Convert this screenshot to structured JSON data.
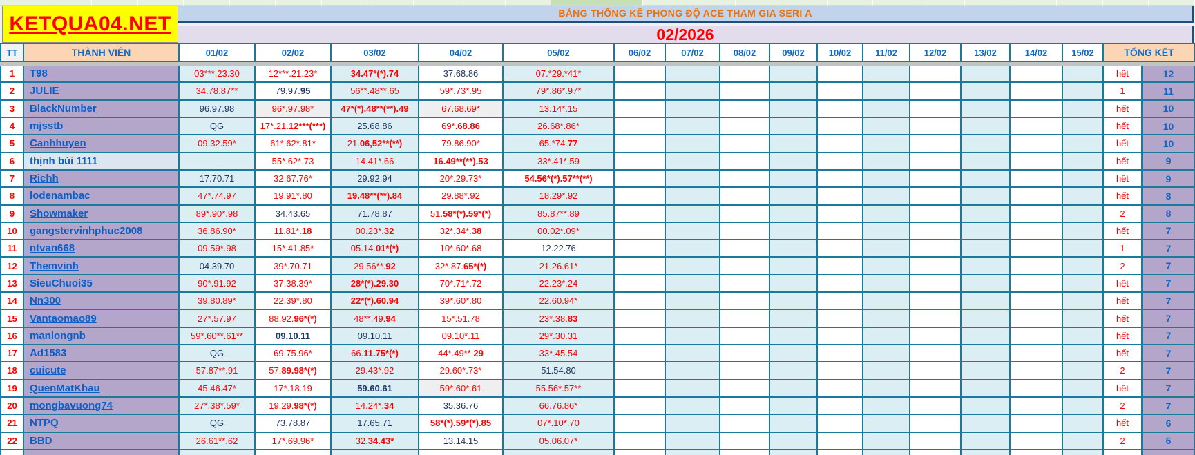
{
  "logo": {
    "text": "KETQUA04.NET"
  },
  "header": {
    "title": "BẢNG THỐNG KÊ PHONG ĐỘ ACE THAM GIA SERI A",
    "month": "02/2026"
  },
  "columns": {
    "tt": "TT",
    "member": "THÀNH VIÊN",
    "dates": [
      "01/02",
      "02/02",
      "03/02",
      "04/02",
      "05/02",
      "06/02",
      "07/02",
      "08/02",
      "09/02",
      "10/02",
      "11/02",
      "12/02",
      "13/02",
      "14/02",
      "15/02"
    ],
    "summary": "TỔNG KẾT"
  },
  "colors": {
    "accent_teal_border": "#1b7a9c",
    "light_blue_cell": "#daeef3",
    "purple_cell": "#b4a5cb",
    "peach_header": "#fcd5b4",
    "title_orange": "#e8720c",
    "red_text": "#ff0000",
    "dark_text": "#1f3864",
    "link_blue": "#0b5fc5",
    "logo_yellow": "#ffff00"
  },
  "rows": [
    {
      "tt": "1",
      "name": "T98",
      "underline": false,
      "cells": [
        {
          "t": "03***.23.30",
          "c": "red"
        },
        {
          "t": "12***.21.23*",
          "c": "red"
        },
        {
          "t": "[b]34.47*(*).74[/b]",
          "c": "red"
        },
        {
          "t": "37.68.86",
          "c": "dark"
        },
        {
          "t": "07.*29.*41*",
          "c": "red"
        }
      ],
      "het": "hết",
      "total": "12"
    },
    {
      "tt": "2",
      "name": "JULIE",
      "underline": true,
      "cells": [
        {
          "t": "34.78.87**",
          "c": "red"
        },
        {
          "t": "79.97.[b]95[/b]",
          "c": "dark"
        },
        {
          "t": "56**.48**.65",
          "c": "red"
        },
        {
          "t": "59*.73*.95",
          "c": "red"
        },
        {
          "t": "79*.86*.97*",
          "c": "red"
        }
      ],
      "het": "1",
      "total": "11"
    },
    {
      "tt": "3",
      "name": "BlackNumber",
      "underline": true,
      "cells": [
        {
          "t": "96.97.98",
          "c": "dark"
        },
        {
          "t": "96*.97.98*",
          "c": "red",
          "bg": "grey"
        },
        {
          "t": "[b]47*(*).48**(**).49[/b]",
          "c": "red"
        },
        {
          "t": "67.68.69*",
          "c": "red",
          "bg": "grey"
        },
        {
          "t": "13.14*.15",
          "c": "red"
        }
      ],
      "het": "hết",
      "total": "10"
    },
    {
      "tt": "4",
      "name": "mjsstb",
      "underline": true,
      "cells": [
        {
          "t": "QG",
          "c": "dark"
        },
        {
          "t": "17*.21.[b]12***(***)[/b]",
          "c": "red"
        },
        {
          "t": "25.68.86",
          "c": "dark"
        },
        {
          "t": "69*.[b]68.86[/b]",
          "c": "red"
        },
        {
          "t": "26.68*.86*",
          "c": "red"
        }
      ],
      "het": "hết",
      "total": "10"
    },
    {
      "tt": "5",
      "name": "Canhhuyen",
      "underline": true,
      "cells": [
        {
          "t": "09.32.59*",
          "c": "red"
        },
        {
          "t": "61*.62*.81*",
          "c": "red"
        },
        {
          "t": "21.[b]06,52**(**)[/b]",
          "c": "red"
        },
        {
          "t": "79.86.90*",
          "c": "red"
        },
        {
          "t": "65.*74.[b]77[/b]",
          "c": "red"
        }
      ],
      "het": "hết",
      "total": "10"
    },
    {
      "tt": "6",
      "name": "thịnh bùi 1111",
      "underline": false,
      "nameBg": "blue",
      "cells": [
        {
          "t": "-",
          "c": "dark"
        },
        {
          "t": "55*.62*.73",
          "c": "red"
        },
        {
          "t": "14.41*.66",
          "c": "red"
        },
        {
          "t": "[b]16.49**(**).53[/b]",
          "c": "red"
        },
        {
          "t": "33*.41*.59",
          "c": "red"
        }
      ],
      "het": "hết",
      "total": "9"
    },
    {
      "tt": "7",
      "name": "Richh",
      "underline": true,
      "cells": [
        {
          "t": "17.70.71",
          "c": "dark"
        },
        {
          "t": "32.67.76*",
          "c": "red"
        },
        {
          "t": "29.92.94",
          "c": "dark"
        },
        {
          "t": "20*.29.73*",
          "c": "red"
        },
        {
          "t": "[b]54.56*(*).57**(**)[/b]",
          "c": "red",
          "bg": "white"
        }
      ],
      "het": "hết",
      "total": "9"
    },
    {
      "tt": "8",
      "name": "lodenambac",
      "underline": false,
      "cells": [
        {
          "t": "47*.74.97",
          "c": "red"
        },
        {
          "t": "19.91*.80",
          "c": "red"
        },
        {
          "t": "[b]19.48**(**).84[/b]",
          "c": "red"
        },
        {
          "t": "29.88*.92",
          "c": "red"
        },
        {
          "t": "18.29*.92",
          "c": "red"
        }
      ],
      "het": "hết",
      "total": "8"
    },
    {
      "tt": "9",
      "name": "Showmaker",
      "underline": true,
      "cells": [
        {
          "t": "89*.90*.98",
          "c": "red"
        },
        {
          "t": "34.43.65",
          "c": "dark"
        },
        {
          "t": "71.78.87",
          "c": "dark"
        },
        {
          "t": "51.[b]58*(*).59*(*)[/b]",
          "c": "red"
        },
        {
          "t": "85.87**.89",
          "c": "red"
        }
      ],
      "het": "2",
      "total": "8"
    },
    {
      "tt": "10",
      "name": "gangstervinhphuc2008",
      "underline": true,
      "cells": [
        {
          "t": "36.86.90*",
          "c": "red"
        },
        {
          "t": "11.81*.[b]18[/b]",
          "c": "red"
        },
        {
          "t": "00.23*.[b]32[/b]",
          "c": "red"
        },
        {
          "t": "32*.34*.[b]38[/b]",
          "c": "red"
        },
        {
          "t": "00.02*.09*",
          "c": "red"
        }
      ],
      "het": "hết",
      "total": "7"
    },
    {
      "tt": "11",
      "name": "ntvan668",
      "underline": true,
      "cells": [
        {
          "t": "09.59*.98",
          "c": "red"
        },
        {
          "t": "15*.41.85*",
          "c": "red"
        },
        {
          "t": "05.14.[b]01*(*)[/b]",
          "c": "red"
        },
        {
          "t": "10*.60*.68",
          "c": "red"
        },
        {
          "t": "12.22.76",
          "c": "dark",
          "bg": "white"
        }
      ],
      "het": "1",
      "total": "7"
    },
    {
      "tt": "12",
      "name": "Themvinh",
      "underline": true,
      "cells": [
        {
          "t": "04.39.70",
          "c": "dark"
        },
        {
          "t": "39*.70.71",
          "c": "red"
        },
        {
          "t": "29.56**.[b]92[/b]",
          "c": "red"
        },
        {
          "t": "32*.87.[b]65*(*)[/b]",
          "c": "red"
        },
        {
          "t": "21.26.61*",
          "c": "red"
        }
      ],
      "het": "2",
      "total": "7"
    },
    {
      "tt": "13",
      "name": "SieuChuoi35",
      "underline": false,
      "cells": [
        {
          "t": "90*.91.92",
          "c": "red"
        },
        {
          "t": "37.38.39*",
          "c": "red"
        },
        {
          "t": "[b]28*(*).29.30[/b]",
          "c": "red"
        },
        {
          "t": "70*.71*.72",
          "c": "red"
        },
        {
          "t": "22.23*.24",
          "c": "red"
        }
      ],
      "het": "hết",
      "total": "7"
    },
    {
      "tt": "14",
      "name": "Nn300",
      "underline": true,
      "cells": [
        {
          "t": "39.80.89*",
          "c": "red"
        },
        {
          "t": "22.39*.80",
          "c": "red"
        },
        {
          "t": "[b]22*(*).60.94[/b]",
          "c": "red"
        },
        {
          "t": "39*.60*.80",
          "c": "red"
        },
        {
          "t": "22.60.94*",
          "c": "red"
        }
      ],
      "het": "hết",
      "total": "7"
    },
    {
      "tt": "15",
      "name": "Vantaomao89",
      "underline": true,
      "cells": [
        {
          "t": "27*.57.97",
          "c": "red"
        },
        {
          "t": "88.92.[b]96*(*)[/b]",
          "c": "red"
        },
        {
          "t": "48**.49.[b]94[/b]",
          "c": "red"
        },
        {
          "t": "15*.51.78",
          "c": "red"
        },
        {
          "t": "23*.38.[b]83[/b]",
          "c": "red"
        }
      ],
      "het": "hết",
      "total": "7"
    },
    {
      "tt": "16",
      "name": "manlongnb",
      "underline": false,
      "cells": [
        {
          "t": "59*.60**.61**",
          "c": "red"
        },
        {
          "t": "[b]09.10.11[/b]",
          "c": "dark"
        },
        {
          "t": "09.10.11",
          "c": "dark"
        },
        {
          "t": "09.10*.11",
          "c": "red"
        },
        {
          "t": "29*.30.31",
          "c": "red"
        }
      ],
      "het": "hết",
      "total": "7"
    },
    {
      "tt": "17",
      "name": "Ad1583",
      "underline": false,
      "cells": [
        {
          "t": "QG",
          "c": "dark"
        },
        {
          "t": "69.75.96*",
          "c": "red"
        },
        {
          "t": "66.[b]11.75*(*)[/b]",
          "c": "red"
        },
        {
          "t": "44*.49**.[b]29[/b]",
          "c": "red"
        },
        {
          "t": "33*.45.54",
          "c": "red"
        }
      ],
      "het": "hết",
      "hetBg": "grey",
      "total": "7"
    },
    {
      "tt": "18",
      "name": "cuicute",
      "underline": true,
      "cells": [
        {
          "t": "57.87**.91",
          "c": "red"
        },
        {
          "t": "57.[b]89.98*(*)[/b]",
          "c": "red"
        },
        {
          "t": "29.43*.92",
          "c": "red"
        },
        {
          "t": "29.60*.73*",
          "c": "red"
        },
        {
          "t": "51.54.80",
          "c": "dark"
        }
      ],
      "het": "2",
      "total": "7"
    },
    {
      "tt": "19",
      "name": "QuenMatKhau",
      "underline": true,
      "cells": [
        {
          "t": "45.46.47*",
          "c": "red"
        },
        {
          "t": "17*.18.19",
          "c": "red"
        },
        {
          "t": "[b]59.60.61[/b]",
          "c": "dark"
        },
        {
          "t": "59*.60*.61",
          "c": "red",
          "bg": "grey"
        },
        {
          "t": "55.56*.57**",
          "c": "red"
        }
      ],
      "het": "hết",
      "total": "7"
    },
    {
      "tt": "20",
      "name": "mongbavuong74",
      "underline": true,
      "cells": [
        {
          "t": "27*.38*.59*",
          "c": "red"
        },
        {
          "t": "19.29.[b]98*(*)[/b]",
          "c": "red"
        },
        {
          "t": "14.24*.[b]34[/b]",
          "c": "red"
        },
        {
          "t": "35.36.76",
          "c": "dark"
        },
        {
          "t": "66.76.86*",
          "c": "red"
        }
      ],
      "het": "2",
      "total": "7"
    },
    {
      "tt": "21",
      "name": "NTPQ",
      "underline": false,
      "cells": [
        {
          "t": "QG",
          "c": "dark"
        },
        {
          "t": "73.78.87",
          "c": "dark"
        },
        {
          "t": "17.65.71",
          "c": "dark"
        },
        {
          "t": "[b]58*(*).59*(*).85[/b]",
          "c": "red"
        },
        {
          "t": "07*.10*.70",
          "c": "red"
        }
      ],
      "het": "hết",
      "total": "6"
    },
    {
      "tt": "22",
      "name": "BBD",
      "underline": true,
      "cells": [
        {
          "t": "26.61**.62",
          "c": "red"
        },
        {
          "t": "17*.69.96*",
          "c": "red"
        },
        {
          "t": "32.[b]34.43*[/b]",
          "c": "red"
        },
        {
          "t": "13.14.15",
          "c": "dark"
        },
        {
          "t": "05.06.07*",
          "c": "red"
        }
      ],
      "het": "2",
      "total": "6"
    }
  ]
}
